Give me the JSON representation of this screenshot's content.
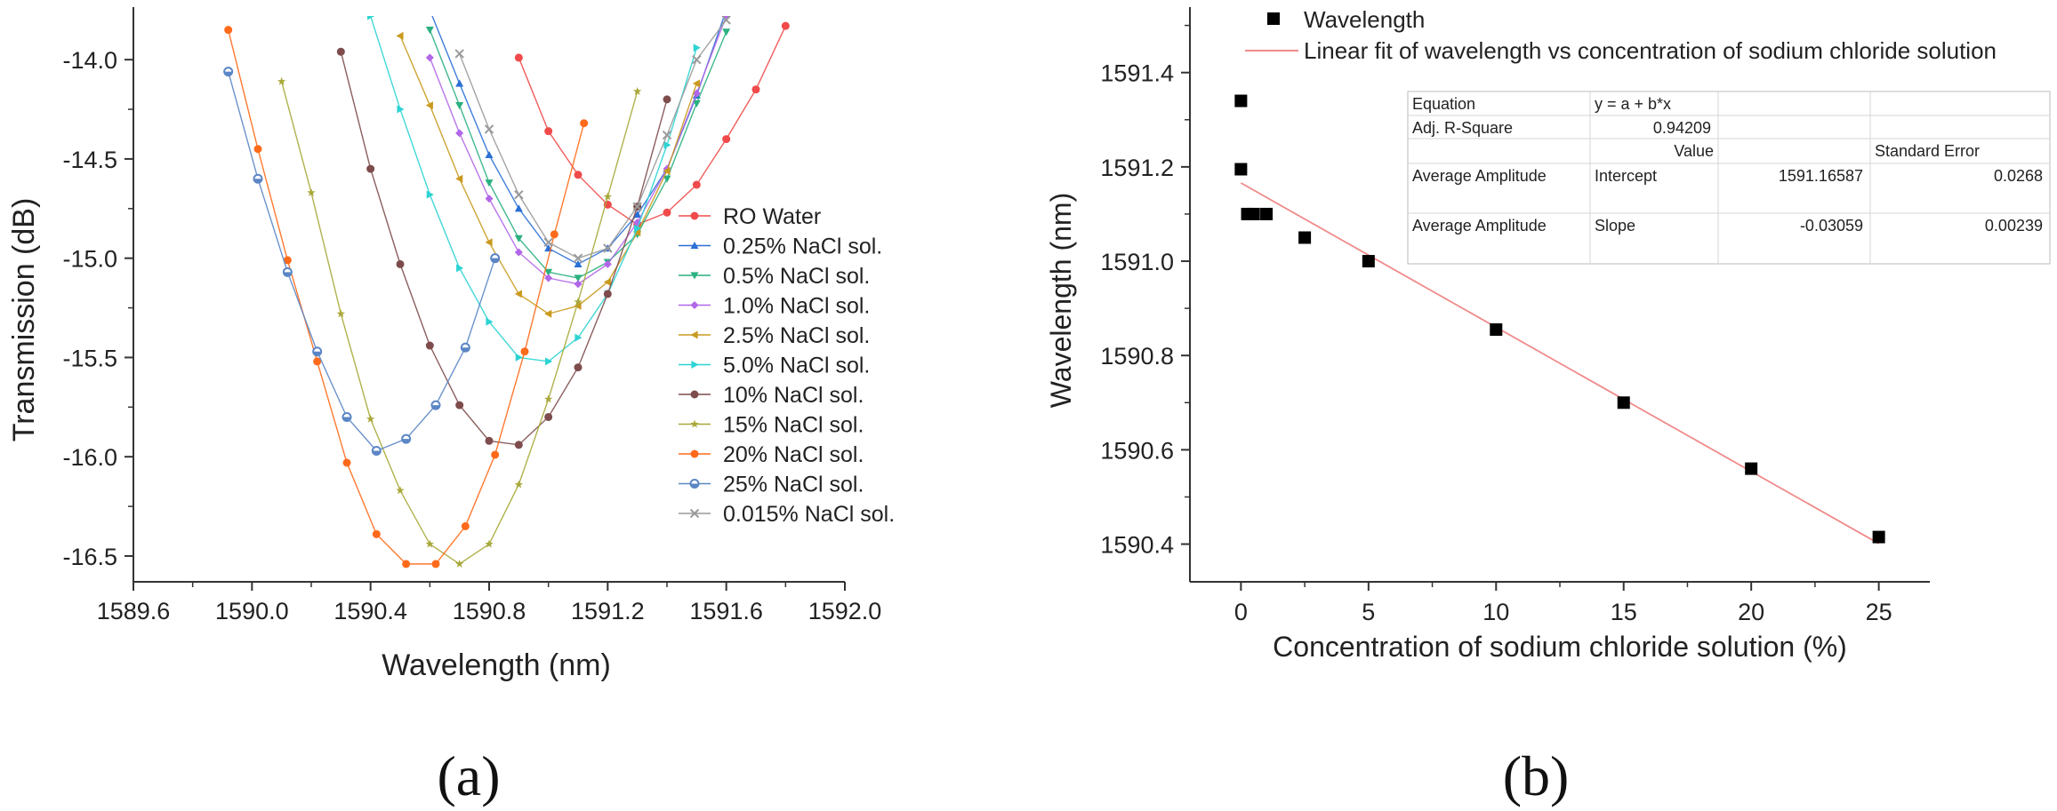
{
  "chart_data": [
    {
      "panel": "(a)",
      "type": "line",
      "xlabel": "Wavelength (nm)",
      "ylabel": "Transmission (dB)",
      "xlim": [
        1589.6,
        1592.0
      ],
      "ylim": [
        -16.63,
        -13.78
      ],
      "xticks": [
        1589.6,
        1590.0,
        1590.4,
        1590.8,
        1591.2,
        1591.6,
        1592.0
      ],
      "xtick_labels": [
        "1589.6",
        "1590.0",
        "1590.4",
        "1590.8",
        "1591.2",
        "1591.6",
        "1592.0"
      ],
      "yticks": [
        -14.0,
        -14.5,
        -15.0,
        -15.5,
        -16.0,
        -16.5
      ],
      "ytick_labels": [
        "-14.0",
        "-14.5",
        "-15.0",
        "-15.5",
        "-16.0",
        "-16.5"
      ],
      "legend_position": "right",
      "series": [
        {
          "name": "RO Water",
          "color": "#f04a4a",
          "marker": "circle",
          "x": [
            1590.9,
            1591.0,
            1591.1,
            1591.2,
            1591.3,
            1591.4,
            1591.5,
            1591.6,
            1591.7,
            1591.8
          ],
          "y": [
            -13.99,
            -14.36,
            -14.58,
            -14.73,
            -14.83,
            -14.77,
            -14.63,
            -14.4,
            -14.15,
            -13.83
          ]
        },
        {
          "name": "0.25% NaCl sol.",
          "color": "#2a6fd6",
          "marker": "triangle-up",
          "x": [
            1590.6,
            1590.7,
            1590.8,
            1590.9,
            1591.0,
            1591.1,
            1591.2,
            1591.3,
            1591.4,
            1591.5,
            1591.6
          ],
          "y": [
            -13.75,
            -14.12,
            -14.48,
            -14.75,
            -14.95,
            -15.03,
            -14.95,
            -14.78,
            -14.55,
            -14.18,
            -13.75
          ]
        },
        {
          "name": "0.5% NaCl sol.",
          "color": "#2bb07f",
          "marker": "triangle-down",
          "x": [
            1590.6,
            1590.7,
            1590.8,
            1590.9,
            1591.0,
            1591.1,
            1591.2,
            1591.3,
            1591.4,
            1591.5,
            1591.6
          ],
          "y": [
            -13.85,
            -14.23,
            -14.62,
            -14.9,
            -15.07,
            -15.1,
            -15.02,
            -14.88,
            -14.6,
            -14.22,
            -13.86
          ]
        },
        {
          "name": "1.0% NaCl sol.",
          "color": "#b266e8",
          "marker": "diamond",
          "x": [
            1590.6,
            1590.7,
            1590.8,
            1590.9,
            1591.0,
            1591.1,
            1591.2,
            1591.3,
            1591.4,
            1591.5,
            1591.6
          ],
          "y": [
            -13.99,
            -14.37,
            -14.7,
            -14.97,
            -15.1,
            -15.13,
            -15.03,
            -14.82,
            -14.55,
            -14.17,
            -13.78
          ]
        },
        {
          "name": "2.5% NaCl sol.",
          "color": "#c99a1e",
          "marker": "triangle-left",
          "x": [
            1590.5,
            1590.6,
            1590.7,
            1590.8,
            1590.9,
            1591.0,
            1591.1,
            1591.2,
            1591.3,
            1591.4,
            1591.5
          ],
          "y": [
            -13.88,
            -14.23,
            -14.6,
            -14.92,
            -15.18,
            -15.28,
            -15.24,
            -15.12,
            -14.87,
            -14.56,
            -14.12
          ]
        },
        {
          "name": "5.0% NaCl sol.",
          "color": "#2ed3d3",
          "marker": "triangle-right",
          "x": [
            1590.4,
            1590.5,
            1590.6,
            1590.7,
            1590.8,
            1590.9,
            1591.0,
            1591.1,
            1591.2,
            1591.3,
            1591.4,
            1591.5
          ],
          "y": [
            -13.78,
            -14.25,
            -14.68,
            -15.05,
            -15.32,
            -15.5,
            -15.52,
            -15.4,
            -15.18,
            -14.85,
            -14.43,
            -13.94
          ]
        },
        {
          "name": "10% NaCl sol.",
          "color": "#7e4c4c",
          "marker": "circle",
          "x": [
            1590.3,
            1590.4,
            1590.5,
            1590.6,
            1590.7,
            1590.8,
            1590.9,
            1591.0,
            1591.1,
            1591.2,
            1591.3,
            1591.4
          ],
          "y": [
            -13.96,
            -14.55,
            -15.03,
            -15.44,
            -15.74,
            -15.92,
            -15.94,
            -15.8,
            -15.55,
            -15.18,
            -14.74,
            -14.2
          ]
        },
        {
          "name": "15% NaCl sol.",
          "color": "#a8a83a",
          "marker": "star",
          "x": [
            1590.1,
            1590.2,
            1590.3,
            1590.4,
            1590.5,
            1590.6,
            1590.7,
            1590.8,
            1590.9,
            1591.0,
            1591.1,
            1591.2,
            1591.3
          ],
          "y": [
            -14.11,
            -14.67,
            -15.28,
            -15.81,
            -16.17,
            -16.44,
            -16.54,
            -16.44,
            -16.14,
            -15.71,
            -15.22,
            -14.69,
            -14.16
          ]
        },
        {
          "name": "20% NaCl sol.",
          "color": "#ff6a1a",
          "marker": "circle",
          "x": [
            1589.92,
            1590.02,
            1590.12,
            1590.22,
            1590.32,
            1590.42,
            1590.52,
            1590.62,
            1590.72,
            1590.82,
            1590.92,
            1591.02,
            1591.12
          ],
          "y": [
            -13.85,
            -14.45,
            -15.01,
            -15.52,
            -16.03,
            -16.39,
            -16.54,
            -16.54,
            -16.35,
            -15.99,
            -15.47,
            -14.88,
            -14.32
          ]
        },
        {
          "name": "25% NaCl sol.",
          "color": "#5b86c5",
          "marker": "circle-half",
          "x": [
            1589.92,
            1590.02,
            1590.12,
            1590.22,
            1590.32,
            1590.42,
            1590.52,
            1590.62,
            1590.72,
            1590.82
          ],
          "y": [
            -14.06,
            -14.6,
            -15.07,
            -15.47,
            -15.8,
            -15.97,
            -15.91,
            -15.74,
            -15.45,
            -15.0
          ]
        },
        {
          "name": "0.015% NaCl sol.",
          "color": "#9a9a9a",
          "marker": "cross",
          "x": [
            1590.7,
            1590.8,
            1590.9,
            1591.0,
            1591.1,
            1591.2,
            1591.3,
            1591.4,
            1591.5,
            1591.6
          ],
          "y": [
            -13.97,
            -14.35,
            -14.68,
            -14.92,
            -15.0,
            -14.95,
            -14.74,
            -14.38,
            -14.0,
            -13.8
          ]
        }
      ]
    },
    {
      "panel": "(b)",
      "type": "scatter",
      "xlabel": "Concentration of sodium chloride solution (%)",
      "ylabel": "Wavelength (nm)",
      "xlim": [
        -2,
        27
      ],
      "ylim": [
        1590.32,
        1591.52
      ],
      "xticks": [
        0,
        5,
        10,
        15,
        20,
        25
      ],
      "xtick_labels": [
        "0",
        "5",
        "10",
        "15",
        "20",
        "25"
      ],
      "yticks": [
        1590.4,
        1590.6,
        1590.8,
        1591.0,
        1591.2,
        1591.4
      ],
      "ytick_labels": [
        "1590.4",
        "1590.6",
        "1590.8",
        "1591.0",
        "1591.2",
        "1591.4"
      ],
      "legend_position": "top",
      "series": [
        {
          "name": "Wavelength",
          "color": "#000000",
          "marker": "square",
          "x": [
            0,
            0,
            0.25,
            0.5,
            1.0,
            2.5,
            5.0,
            10,
            15,
            20,
            25
          ],
          "y": [
            1591.34,
            1591.195,
            1591.1,
            1591.1,
            1591.1,
            1591.05,
            1591.0,
            1590.855,
            1590.7,
            1590.56,
            1590.415
          ]
        },
        {
          "name": "Linear fit of wavelength vs concentration of sodium chloride solution",
          "color": "#f08a8a",
          "type": "line",
          "x": [
            0,
            25
          ],
          "y": [
            1591.16587,
            1590.40112
          ]
        }
      ],
      "fit_table": {
        "rows": [
          [
            "Equation",
            "y = a + b*x",
            "",
            ""
          ],
          [
            "Adj. R-Square",
            "0.94209",
            "",
            ""
          ],
          [
            "",
            "",
            "Value",
            "Standard Error"
          ],
          [
            "Average Amplitude",
            "Intercept",
            "1591.16587",
            "0.0268"
          ],
          [
            "Average Amplitude",
            "Slope",
            "-0.03059",
            "0.00239"
          ]
        ]
      }
    }
  ]
}
